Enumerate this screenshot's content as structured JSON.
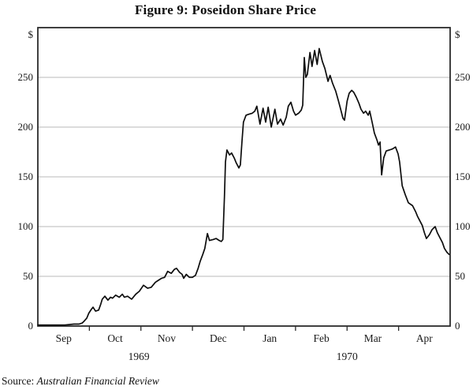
{
  "title": "Figure 9: Poseidon Share Price",
  "source": {
    "prefix": "Source:",
    "name": "Australian Financial Review"
  },
  "colors": {
    "line": "#0d0d0d",
    "grid": "#b9b9b9",
    "axis": "#2b2b2b",
    "text": "#1a1a1a"
  },
  "y_axis": {
    "unit_label": "$",
    "ticks": [
      0,
      50,
      100,
      150,
      200,
      250
    ],
    "max": 300
  },
  "x_axis": {
    "months": [
      "Sep",
      "Oct",
      "Nov",
      "Dec",
      "Jan",
      "Feb",
      "Mar",
      "Apr"
    ],
    "years": [
      {
        "label": "1969",
        "center_month": 1.96
      },
      {
        "label": "1970",
        "center_month": 6.0
      }
    ]
  },
  "chart_data": {
    "type": "line",
    "title": "Figure 9: Poseidon Share Price",
    "ylabel": "$",
    "ylim": [
      0,
      300
    ],
    "grid": "horizontal",
    "x_unit": "months since 1 Sep 1969",
    "xtick_labels": [
      "Sep",
      "Oct",
      "Nov",
      "Dec",
      "Jan",
      "Feb",
      "Mar",
      "Apr"
    ],
    "source": "Australian Financial Review",
    "series": [
      {
        "name": "Poseidon share price ($)",
        "points": [
          [
            0.0,
            1
          ],
          [
            0.15,
            1
          ],
          [
            0.34,
            1
          ],
          [
            0.52,
            1
          ],
          [
            0.7,
            2
          ],
          [
            0.8,
            2
          ],
          [
            0.86,
            3
          ],
          [
            0.9,
            5
          ],
          [
            0.95,
            8
          ],
          [
            0.99,
            13
          ],
          [
            1.04,
            17
          ],
          [
            1.07,
            19
          ],
          [
            1.12,
            15
          ],
          [
            1.18,
            16
          ],
          [
            1.22,
            22
          ],
          [
            1.25,
            27
          ],
          [
            1.3,
            30
          ],
          [
            1.36,
            26
          ],
          [
            1.41,
            29
          ],
          [
            1.45,
            28
          ],
          [
            1.51,
            31
          ],
          [
            1.58,
            29
          ],
          [
            1.64,
            32
          ],
          [
            1.68,
            29
          ],
          [
            1.74,
            30
          ],
          [
            1.82,
            27
          ],
          [
            1.9,
            32
          ],
          [
            1.97,
            35
          ],
          [
            2.05,
            41
          ],
          [
            2.13,
            38
          ],
          [
            2.2,
            39
          ],
          [
            2.28,
            44
          ],
          [
            2.34,
            46
          ],
          [
            2.4,
            48
          ],
          [
            2.46,
            49
          ],
          [
            2.52,
            55
          ],
          [
            2.59,
            53
          ],
          [
            2.65,
            57
          ],
          [
            2.69,
            58
          ],
          [
            2.75,
            54
          ],
          [
            2.8,
            52
          ],
          [
            2.83,
            48
          ],
          [
            2.88,
            52
          ],
          [
            2.94,
            49
          ],
          [
            3.0,
            49
          ],
          [
            3.06,
            51
          ],
          [
            3.11,
            58
          ],
          [
            3.15,
            65
          ],
          [
            3.2,
            72
          ],
          [
            3.24,
            78
          ],
          [
            3.29,
            93
          ],
          [
            3.33,
            86
          ],
          [
            3.4,
            87
          ],
          [
            3.46,
            88
          ],
          [
            3.52,
            86
          ],
          [
            3.56,
            85
          ],
          [
            3.59,
            87
          ],
          [
            3.62,
            130
          ],
          [
            3.64,
            165
          ],
          [
            3.67,
            177
          ],
          [
            3.72,
            172
          ],
          [
            3.76,
            174
          ],
          [
            3.81,
            169
          ],
          [
            3.85,
            164
          ],
          [
            3.9,
            159
          ],
          [
            3.93,
            162
          ],
          [
            3.96,
            185
          ],
          [
            3.99,
            205
          ],
          [
            4.04,
            212
          ],
          [
            4.1,
            213
          ],
          [
            4.16,
            214
          ],
          [
            4.21,
            216
          ],
          [
            4.25,
            221
          ],
          [
            4.31,
            203
          ],
          [
            4.37,
            219
          ],
          [
            4.42,
            205
          ],
          [
            4.47,
            220
          ],
          [
            4.53,
            200
          ],
          [
            4.6,
            218
          ],
          [
            4.65,
            203
          ],
          [
            4.71,
            208
          ],
          [
            4.76,
            202
          ],
          [
            4.82,
            210
          ],
          [
            4.86,
            221
          ],
          [
            4.91,
            225
          ],
          [
            4.96,
            216
          ],
          [
            5.0,
            212
          ],
          [
            5.06,
            214
          ],
          [
            5.11,
            217
          ],
          [
            5.14,
            222
          ],
          [
            5.17,
            270
          ],
          [
            5.2,
            250
          ],
          [
            5.23,
            253
          ],
          [
            5.28,
            275
          ],
          [
            5.32,
            261
          ],
          [
            5.37,
            277
          ],
          [
            5.42,
            263
          ],
          [
            5.46,
            279
          ],
          [
            5.52,
            266
          ],
          [
            5.57,
            259
          ],
          [
            5.63,
            246
          ],
          [
            5.67,
            252
          ],
          [
            5.72,
            244
          ],
          [
            5.78,
            236
          ],
          [
            5.83,
            227
          ],
          [
            5.87,
            219
          ],
          [
            5.92,
            209
          ],
          [
            5.95,
            207
          ],
          [
            6.0,
            226
          ],
          [
            6.04,
            234
          ],
          [
            6.09,
            237
          ],
          [
            6.13,
            235
          ],
          [
            6.18,
            230
          ],
          [
            6.23,
            224
          ],
          [
            6.27,
            218
          ],
          [
            6.32,
            214
          ],
          [
            6.36,
            216
          ],
          [
            6.41,
            212
          ],
          [
            6.44,
            216
          ],
          [
            6.49,
            204
          ],
          [
            6.53,
            194
          ],
          [
            6.58,
            187
          ],
          [
            6.61,
            182
          ],
          [
            6.64,
            185
          ],
          [
            6.67,
            152
          ],
          [
            6.71,
            169
          ],
          [
            6.76,
            176
          ],
          [
            6.82,
            177
          ],
          [
            6.88,
            178
          ],
          [
            6.94,
            180
          ],
          [
            6.99,
            173
          ],
          [
            7.02,
            165
          ],
          [
            7.07,
            141
          ],
          [
            7.13,
            132
          ],
          [
            7.19,
            124
          ],
          [
            7.27,
            121
          ],
          [
            7.33,
            115
          ],
          [
            7.37,
            110
          ],
          [
            7.42,
            105
          ],
          [
            7.46,
            101
          ],
          [
            7.5,
            94
          ],
          [
            7.54,
            88
          ],
          [
            7.6,
            92
          ],
          [
            7.65,
            97
          ],
          [
            7.71,
            100
          ],
          [
            7.75,
            94
          ],
          [
            7.8,
            89
          ],
          [
            7.85,
            84
          ],
          [
            7.89,
            78
          ],
          [
            7.94,
            74
          ],
          [
            7.98,
            72
          ]
        ]
      }
    ]
  }
}
